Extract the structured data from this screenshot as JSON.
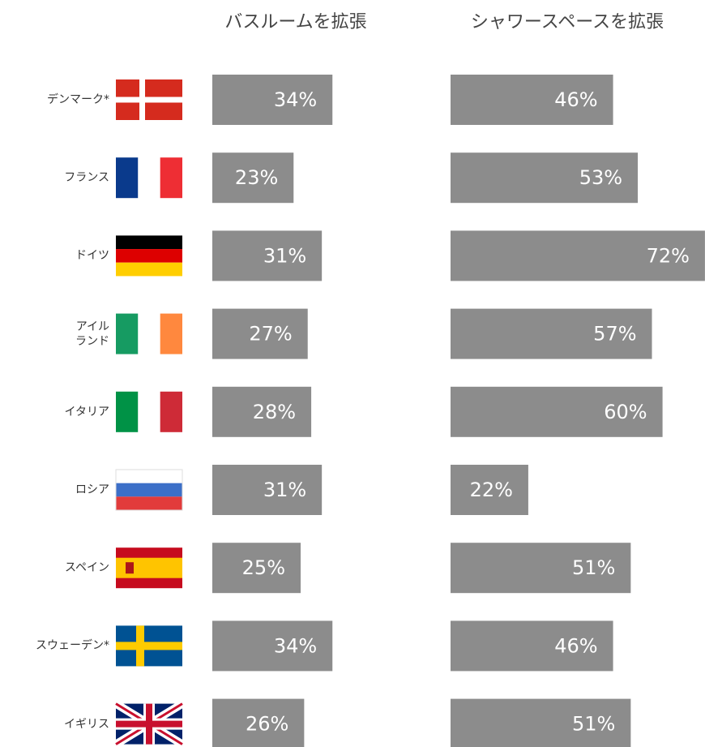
{
  "chart_data": {
    "type": "bar",
    "categories": [
      "デンマーク*",
      "フランス",
      "ドイツ",
      "アイル\nランド",
      "イタリア",
      "ロシア",
      "スペイン",
      "スウェーデン*",
      "イギリス"
    ],
    "series": [
      {
        "name": "バスルームを拡張",
        "color": "#8c8c8c",
        "values": [
          34,
          23,
          31,
          27,
          28,
          31,
          25,
          34,
          26
        ],
        "value_labels": [
          "34%",
          "23%",
          "31%",
          "27%",
          "28%",
          "31%",
          "25%",
          "34%",
          "26%"
        ]
      },
      {
        "name": "シャワースペースを拡張",
        "color": "#8c8c8c",
        "values": [
          46,
          53,
          72,
          57,
          60,
          22,
          51,
          46,
          51
        ],
        "value_labels": [
          "46%",
          "53%",
          "72%",
          "57%",
          "60%",
          "22%",
          "51%",
          "46%",
          "51%"
        ]
      }
    ]
  }
}
